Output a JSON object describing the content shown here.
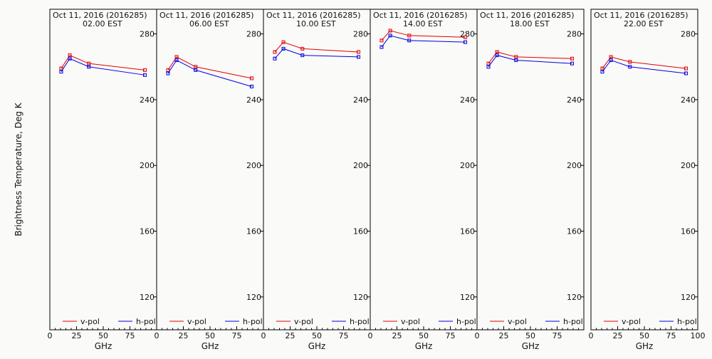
{
  "figure": {
    "ylabel": "Brightness Temperature, Deg K",
    "xlabel": "GHz"
  },
  "chart_data": [
    {
      "type": "line",
      "title": "Oct 11, 2016 (2016285)",
      "subtitle": "02.00 EST",
      "xlabel": "GHz",
      "ylabel": "Brightness Temperature, Deg K",
      "xlim": [
        0,
        100
      ],
      "ylim": [
        100,
        295
      ],
      "xticks": [
        0,
        25,
        50,
        75,
        100
      ],
      "yticks": [
        120,
        160,
        200,
        240,
        280
      ],
      "x": [
        10.65,
        18.7,
        36.5,
        89
      ],
      "series": [
        {
          "name": "v-pol",
          "color": "#e00000",
          "values": [
            259,
            267,
            262,
            258
          ]
        },
        {
          "name": "h-pol",
          "color": "#0000e0",
          "values": [
            257,
            265,
            260,
            255
          ]
        }
      ],
      "legend": "bottom"
    },
    {
      "type": "line",
      "title": "Oct 11, 2016 (2016285)",
      "subtitle": "06.00 EST",
      "xlabel": "GHz",
      "ylabel": "Brightness Temperature, Deg K",
      "xlim": [
        0,
        100
      ],
      "ylim": [
        100,
        295
      ],
      "xticks": [
        0,
        25,
        50,
        75,
        100
      ],
      "yticks": [
        120,
        160,
        200,
        240,
        280
      ],
      "x": [
        10.65,
        18.7,
        36.5,
        89
      ],
      "series": [
        {
          "name": "v-pol",
          "color": "#e00000",
          "values": [
            258,
            266,
            260,
            253
          ]
        },
        {
          "name": "h-pol",
          "color": "#0000e0",
          "values": [
            256,
            264,
            258,
            248
          ]
        }
      ],
      "legend": "bottom"
    },
    {
      "type": "line",
      "title": "Oct 11, 2016 (2016285)",
      "subtitle": "10.00 EST",
      "xlabel": "GHz",
      "ylabel": "Brightness Temperature, Deg K",
      "xlim": [
        0,
        100
      ],
      "ylim": [
        100,
        295
      ],
      "xticks": [
        0,
        25,
        50,
        75,
        100
      ],
      "yticks": [
        120,
        160,
        200,
        240,
        280
      ],
      "x": [
        10.65,
        18.7,
        36.5,
        89
      ],
      "series": [
        {
          "name": "v-pol",
          "color": "#e00000",
          "values": [
            269,
            275,
            271,
            269
          ]
        },
        {
          "name": "h-pol",
          "color": "#0000e0",
          "values": [
            265,
            271,
            267,
            266
          ]
        }
      ],
      "legend": "bottom"
    },
    {
      "type": "line",
      "title": "Oct 11, 2016 (2016285)",
      "subtitle": "14.00 EST",
      "xlabel": "GHz",
      "ylabel": "Brightness Temperature, Deg K",
      "xlim": [
        0,
        100
      ],
      "ylim": [
        100,
        295
      ],
      "xticks": [
        0,
        25,
        50,
        75,
        100
      ],
      "yticks": [
        120,
        160,
        200,
        240,
        280
      ],
      "x": [
        10.65,
        18.7,
        36.5,
        89
      ],
      "series": [
        {
          "name": "v-pol",
          "color": "#e00000",
          "values": [
            276,
            282,
            279,
            278
          ]
        },
        {
          "name": "h-pol",
          "color": "#0000e0",
          "values": [
            272,
            279,
            276,
            275
          ]
        }
      ],
      "legend": "bottom"
    },
    {
      "type": "line",
      "title": "Oct 11, 2016 (2016285)",
      "subtitle": "18.00 EST",
      "xlabel": "GHz",
      "ylabel": "Brightness Temperature, Deg K",
      "xlim": [
        0,
        100
      ],
      "ylim": [
        100,
        295
      ],
      "xticks": [
        0,
        25,
        50,
        75,
        100
      ],
      "yticks": [
        120,
        160,
        200,
        240,
        280
      ],
      "x": [
        10.65,
        18.7,
        36.5,
        89
      ],
      "series": [
        {
          "name": "v-pol",
          "color": "#e00000",
          "values": [
            262,
            269,
            266,
            265
          ]
        },
        {
          "name": "h-pol",
          "color": "#0000e0",
          "values": [
            260,
            267,
            264,
            262
          ]
        }
      ],
      "legend": "bottom"
    },
    {
      "type": "line",
      "title": "Oct 11, 2016 (2016285)",
      "subtitle": "22.00 EST",
      "xlabel": "GHz",
      "ylabel": "Brightness Temperature, Deg K",
      "xlim": [
        0,
        100
      ],
      "ylim": [
        100,
        295
      ],
      "xticks": [
        0,
        25,
        50,
        75,
        100
      ],
      "yticks": [
        120,
        160,
        200,
        240,
        280
      ],
      "x": [
        10.65,
        18.7,
        36.5,
        89
      ],
      "series": [
        {
          "name": "v-pol",
          "color": "#e00000",
          "values": [
            259,
            266,
            263,
            259
          ]
        },
        {
          "name": "h-pol",
          "color": "#0000e0",
          "values": [
            257,
            264,
            260,
            256
          ]
        }
      ],
      "legend": "bottom"
    }
  ]
}
